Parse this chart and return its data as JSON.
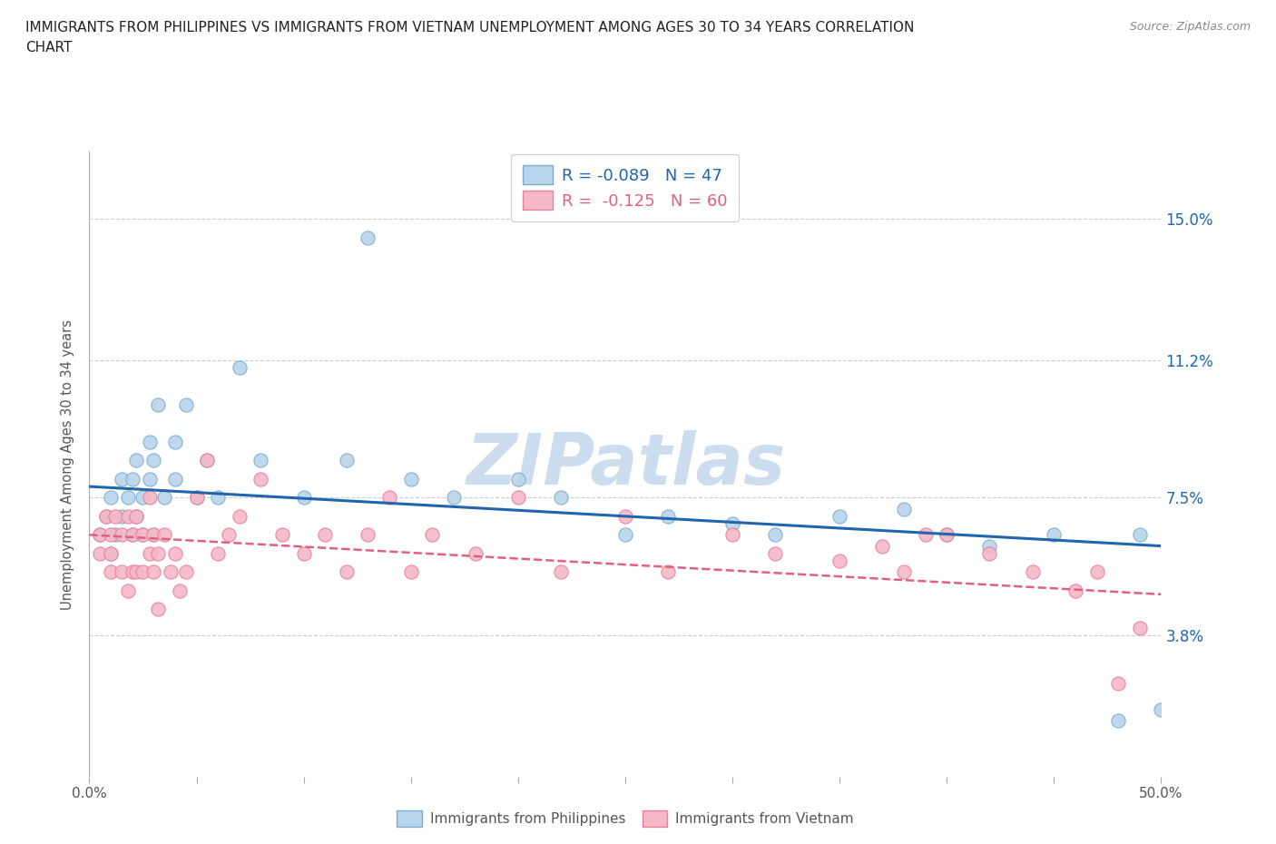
{
  "title_line1": "IMMIGRANTS FROM PHILIPPINES VS IMMIGRANTS FROM VIETNAM UNEMPLOYMENT AMONG AGES 30 TO 34 YEARS CORRELATION",
  "title_line2": "CHART",
  "source": "Source: ZipAtlas.com",
  "ylabel": "Unemployment Among Ages 30 to 34 years",
  "xlim": [
    0.0,
    0.5
  ],
  "ylim": [
    0.0,
    0.168
  ],
  "yticks": [
    0.038,
    0.075,
    0.112,
    0.15
  ],
  "ytick_labels": [
    "3.8%",
    "7.5%",
    "11.2%",
    "15.0%"
  ],
  "xticks": [
    0.0,
    0.05,
    0.1,
    0.15,
    0.2,
    0.25,
    0.3,
    0.35,
    0.4,
    0.45,
    0.5
  ],
  "xtick_labels": [
    "0.0%",
    "",
    "",
    "",
    "",
    "",
    "",
    "",
    "",
    "",
    "50.0%"
  ],
  "philippines_R": -0.089,
  "philippines_N": 47,
  "vietnam_R": -0.125,
  "vietnam_N": 60,
  "philippines_fill": "#b8d4ea",
  "philippines_edge": "#7aaed0",
  "vietnam_fill": "#f5b8c8",
  "vietnam_edge": "#e88098",
  "trend_phil_color": "#2166ac",
  "trend_viet_color": "#e06080",
  "watermark": "ZIPatlas",
  "watermark_color": "#ccddf0",
  "phil_trend_x0": 0.0,
  "phil_trend_y0": 0.078,
  "phil_trend_x1": 0.5,
  "phil_trend_y1": 0.062,
  "viet_trend_x0": 0.0,
  "viet_trend_y0": 0.065,
  "viet_trend_x1": 0.5,
  "viet_trend_y1": 0.049,
  "philippines_x": [
    0.005,
    0.008,
    0.01,
    0.01,
    0.012,
    0.015,
    0.015,
    0.018,
    0.02,
    0.02,
    0.022,
    0.022,
    0.025,
    0.025,
    0.028,
    0.028,
    0.03,
    0.03,
    0.032,
    0.035,
    0.04,
    0.04,
    0.045,
    0.05,
    0.055,
    0.06,
    0.07,
    0.08,
    0.1,
    0.12,
    0.13,
    0.15,
    0.17,
    0.2,
    0.22,
    0.25,
    0.27,
    0.3,
    0.32,
    0.35,
    0.38,
    0.4,
    0.42,
    0.45,
    0.48,
    0.49,
    0.5
  ],
  "philippines_y": [
    0.065,
    0.07,
    0.06,
    0.075,
    0.065,
    0.07,
    0.08,
    0.075,
    0.065,
    0.08,
    0.07,
    0.085,
    0.075,
    0.065,
    0.08,
    0.09,
    0.065,
    0.085,
    0.1,
    0.075,
    0.09,
    0.08,
    0.1,
    0.075,
    0.085,
    0.075,
    0.11,
    0.085,
    0.075,
    0.085,
    0.145,
    0.08,
    0.075,
    0.08,
    0.075,
    0.065,
    0.07,
    0.068,
    0.065,
    0.07,
    0.072,
    0.065,
    0.062,
    0.065,
    0.015,
    0.065,
    0.018
  ],
  "vietnam_x": [
    0.005,
    0.005,
    0.008,
    0.01,
    0.01,
    0.01,
    0.012,
    0.015,
    0.015,
    0.018,
    0.018,
    0.02,
    0.02,
    0.022,
    0.022,
    0.025,
    0.025,
    0.028,
    0.028,
    0.03,
    0.03,
    0.032,
    0.032,
    0.035,
    0.038,
    0.04,
    0.042,
    0.045,
    0.05,
    0.055,
    0.06,
    0.065,
    0.07,
    0.08,
    0.09,
    0.1,
    0.11,
    0.12,
    0.13,
    0.14,
    0.15,
    0.16,
    0.18,
    0.2,
    0.22,
    0.25,
    0.27,
    0.3,
    0.32,
    0.35,
    0.37,
    0.38,
    0.39,
    0.4,
    0.42,
    0.44,
    0.46,
    0.47,
    0.48,
    0.49
  ],
  "vietnam_y": [
    0.06,
    0.065,
    0.07,
    0.055,
    0.06,
    0.065,
    0.07,
    0.055,
    0.065,
    0.05,
    0.07,
    0.055,
    0.065,
    0.055,
    0.07,
    0.055,
    0.065,
    0.075,
    0.06,
    0.055,
    0.065,
    0.045,
    0.06,
    0.065,
    0.055,
    0.06,
    0.05,
    0.055,
    0.075,
    0.085,
    0.06,
    0.065,
    0.07,
    0.08,
    0.065,
    0.06,
    0.065,
    0.055,
    0.065,
    0.075,
    0.055,
    0.065,
    0.06,
    0.075,
    0.055,
    0.07,
    0.055,
    0.065,
    0.06,
    0.058,
    0.062,
    0.055,
    0.065,
    0.065,
    0.06,
    0.055,
    0.05,
    0.055,
    0.025,
    0.04
  ]
}
